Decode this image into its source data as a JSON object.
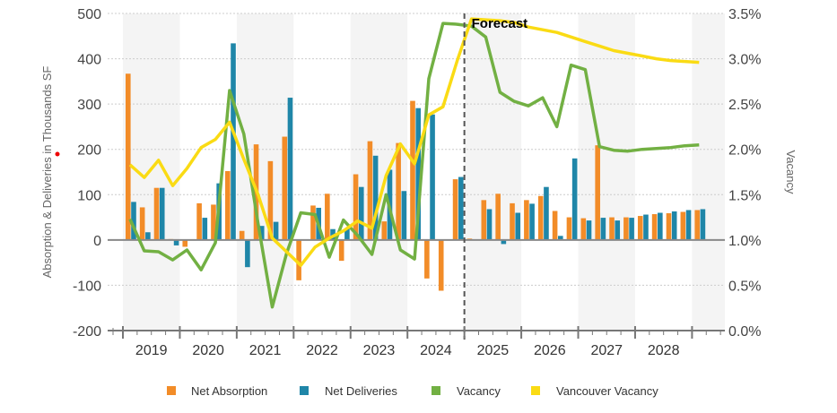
{
  "chart_data": {
    "type": "bar+line",
    "title": "",
    "forecast_label": "Forecast",
    "forecast_start_index": 24,
    "ylabel": "Absorption & Deliveries in Thousands SF",
    "y2label": "Vacancy",
    "ylim": [
      -200,
      500
    ],
    "y2lim": [
      0.0,
      3.5
    ],
    "yticks": [
      "-200",
      "-100",
      "0",
      "100",
      "200",
      "300",
      "400",
      "500"
    ],
    "y2ticks": [
      "0.0%",
      "0.5%",
      "1.0%",
      "1.5%",
      "2.0%",
      "2.5%",
      "3.0%",
      "3.5%"
    ],
    "year_labels": [
      "2019",
      "2020",
      "2021",
      "2022",
      "2023",
      "2024",
      "2025",
      "2026",
      "2027",
      "2028"
    ],
    "quarters_count": 41,
    "grid": true,
    "legend_position": "bottom",
    "colors": {
      "absorption": "#F28C28",
      "deliveries": "#1F86A8",
      "vacancy": "#72B043",
      "vancouver": "#FADB14"
    },
    "series": [
      {
        "name": "Net Absorption",
        "type": "bar",
        "axis": "left",
        "values": [
          367,
          72,
          115,
          2,
          -15,
          81,
          78,
          152,
          20,
          211,
          174,
          228,
          -89,
          76,
          102,
          -46,
          145,
          218,
          41,
          214,
          307,
          -85,
          -112,
          134,
          3,
          88,
          102,
          81,
          88,
          97,
          64,
          50,
          48,
          209,
          50,
          50,
          53,
          57,
          59,
          62,
          66
        ]
      },
      {
        "name": "Net Deliveries",
        "type": "bar",
        "axis": "left",
        "values": [
          84,
          17,
          115,
          -12,
          0,
          49,
          125,
          434,
          -60,
          31,
          40,
          314,
          0,
          71,
          24,
          25,
          117,
          186,
          155,
          108,
          291,
          277,
          0,
          139,
          0,
          68,
          -9,
          60,
          80,
          117,
          9,
          180,
          43,
          49,
          43,
          49,
          56,
          60,
          63,
          66,
          68
        ]
      },
      {
        "name": "Vacancy",
        "type": "line",
        "axis": "right",
        "values": [
          1.23,
          0.88,
          0.87,
          0.78,
          0.89,
          0.67,
          0.97,
          2.65,
          2.17,
          1.18,
          0.26,
          0.85,
          1.3,
          1.28,
          0.81,
          1.22,
          1.05,
          0.84,
          1.5,
          0.89,
          0.79,
          2.78,
          3.39,
          3.38,
          3.36,
          3.24,
          2.63,
          2.53,
          2.48,
          2.57,
          2.25,
          2.93,
          2.88,
          2.03,
          1.99,
          1.98,
          2.0,
          2.01,
          2.02,
          2.04,
          2.05
        ]
      },
      {
        "name": "Vancouver Vacancy",
        "type": "line",
        "axis": "right",
        "values": [
          1.83,
          1.69,
          1.88,
          1.6,
          1.79,
          2.02,
          2.11,
          2.3,
          1.89,
          1.5,
          1.02,
          0.87,
          0.72,
          0.92,
          1.02,
          1.1,
          1.21,
          1.13,
          1.71,
          2.06,
          1.84,
          2.38,
          2.47,
          2.98,
          3.44,
          3.43,
          3.42,
          3.4,
          3.35,
          3.32,
          3.29,
          3.24,
          3.19,
          3.14,
          3.09,
          3.06,
          3.03,
          3.0,
          2.98,
          2.97,
          2.96
        ]
      }
    ]
  }
}
